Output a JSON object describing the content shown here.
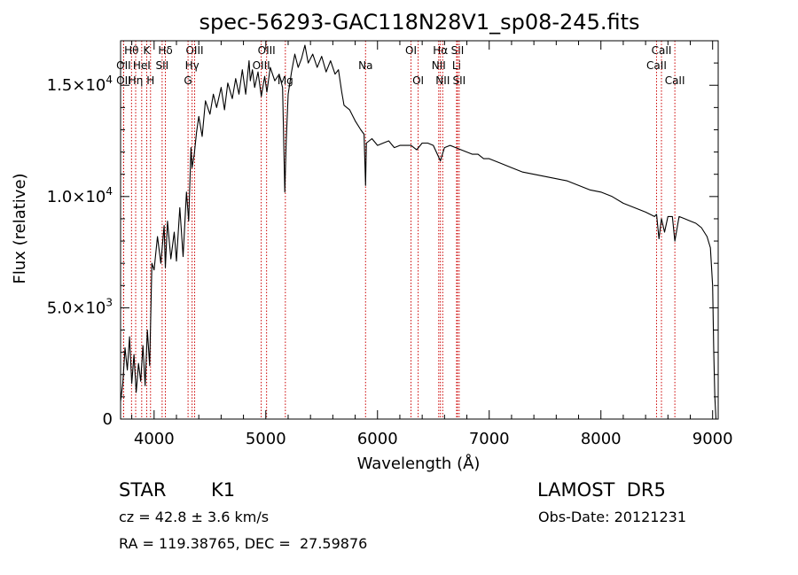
{
  "chart_data": {
    "type": "line",
    "title": "spec-56293-GAC118N28V1_sp08-245.fits",
    "xlabel": "Wavelength (Å)",
    "ylabel": "Flux (relative)",
    "xlim": [
      3700,
      9050
    ],
    "ylim": [
      0,
      17000
    ],
    "x_ticks": [
      4000,
      5000,
      6000,
      7000,
      8000,
      9000
    ],
    "x_tick_labels": [
      "4000",
      "5000",
      "6000",
      "7000",
      "8000",
      "9000"
    ],
    "y_ticks": [
      0,
      5000,
      10000,
      15000
    ],
    "y_tick_labels": [
      {
        "mantissa": "0",
        "exponent": ""
      },
      {
        "mantissa": "5.0×10",
        "exponent": "3"
      },
      {
        "mantissa": "1.0×10",
        "exponent": "4"
      },
      {
        "mantissa": "1.5×10",
        "exponent": "4"
      }
    ],
    "series": [
      {
        "color": "#000000",
        "x": [
          3700,
          3720,
          3740,
          3760,
          3780,
          3800,
          3820,
          3840,
          3860,
          3880,
          3900,
          3920,
          3940,
          3960,
          3980,
          4000,
          4030,
          4060,
          4090,
          4101,
          4120,
          4150,
          4180,
          4200,
          4230,
          4260,
          4290,
          4310,
          4330,
          4340,
          4360,
          4380,
          4400,
          4430,
          4460,
          4500,
          4530,
          4560,
          4600,
          4630,
          4660,
          4700,
          4730,
          4760,
          4790,
          4820,
          4850,
          4861,
          4880,
          4900,
          4930,
          4960,
          4990,
          5010,
          5040,
          5080,
          5120,
          5150,
          5170,
          5183,
          5200,
          5230,
          5260,
          5290,
          5320,
          5350,
          5380,
          5420,
          5460,
          5500,
          5540,
          5580,
          5620,
          5650,
          5680,
          5700,
          5750,
          5800,
          5850,
          5880,
          5893,
          5900,
          5950,
          6000,
          6050,
          6100,
          6150,
          6200,
          6250,
          6300,
          6350,
          6400,
          6450,
          6500,
          6563,
          6600,
          6650,
          6700,
          6750,
          6800,
          6850,
          6900,
          6950,
          7000,
          7100,
          7200,
          7300,
          7400,
          7500,
          7600,
          7700,
          7800,
          7900,
          8000,
          8100,
          8200,
          8300,
          8400,
          8480,
          8498,
          8520,
          8542,
          8570,
          8600,
          8640,
          8662,
          8700,
          8750,
          8800,
          8850,
          8900,
          8950,
          8980,
          9000,
          9010,
          9020,
          9030
        ],
        "y": [
          800,
          1600,
          3200,
          2200,
          3700,
          1600,
          2900,
          1200,
          2500,
          1700,
          3300,
          1500,
          4000,
          2400,
          7000,
          6700,
          8200,
          7000,
          8700,
          6800,
          8900,
          7200,
          8400,
          7100,
          9500,
          7300,
          10200,
          8900,
          12200,
          11300,
          11900,
          12900,
          13600,
          12700,
          14300,
          13700,
          14600,
          14000,
          14900,
          13900,
          15100,
          14400,
          15300,
          14600,
          15700,
          14600,
          16100,
          15200,
          15700,
          14900,
          15600,
          14500,
          15400,
          14700,
          15800,
          15200,
          15500,
          14900,
          10200,
          12500,
          14600,
          15600,
          16400,
          15800,
          16200,
          16800,
          16000,
          16400,
          15800,
          16300,
          15600,
          16100,
          15500,
          15700,
          14700,
          14100,
          13900,
          13400,
          13000,
          12800,
          10500,
          12400,
          12600,
          12300,
          12400,
          12500,
          12200,
          12300,
          12300,
          12300,
          12100,
          12400,
          12400,
          12300,
          11600,
          12200,
          12300,
          12200,
          12100,
          12000,
          11900,
          11900,
          11700,
          11700,
          11500,
          11300,
          11100,
          11000,
          10900,
          10800,
          10700,
          10500,
          10300,
          10200,
          10000,
          9700,
          9500,
          9300,
          9100,
          9200,
          8100,
          9000,
          8400,
          9100,
          9100,
          8000,
          9100,
          9000,
          8900,
          8800,
          8600,
          8200,
          7700,
          6000,
          3000,
          1000,
          0
        ]
      }
    ],
    "line_markers": [
      {
        "label": "Hθ",
        "x": 3798,
        "row": 1
      },
      {
        "label": "OII",
        "x": 3727,
        "row": 2
      },
      {
        "label": "OII",
        "x": 3727,
        "row": 3
      },
      {
        "label": "K",
        "x": 3934,
        "row": 1
      },
      {
        "label": "HeI",
        "x": 3889,
        "row": 2
      },
      {
        "label": "Hη",
        "x": 3835,
        "row": 3
      },
      {
        "label": "H",
        "x": 3968,
        "row": 3
      },
      {
        "label": "Hδ",
        "x": 4101,
        "row": 1
      },
      {
        "label": "SII",
        "x": 4072,
        "row": 2
      },
      {
        "label": "OIII",
        "x": 4363,
        "row": 1
      },
      {
        "label": "Hγ",
        "x": 4340,
        "row": 2
      },
      {
        "label": "G",
        "x": 4304,
        "row": 3
      },
      {
        "label": "OIII",
        "x": 5007,
        "row": 1
      },
      {
        "label": "OIII",
        "x": 4959,
        "row": 2
      },
      {
        "label": "Mg",
        "x": 5175,
        "row": 3
      },
      {
        "label": "Na",
        "x": 5893,
        "row": 2
      },
      {
        "label": "OI",
        "x": 6300,
        "row": 1
      },
      {
        "label": "OI",
        "x": 6364,
        "row": 3
      },
      {
        "label": "Hα",
        "x": 6563,
        "row": 1
      },
      {
        "label": "SII",
        "x": 6716,
        "row": 1
      },
      {
        "label": "NII",
        "x": 6548,
        "row": 2
      },
      {
        "label": "Li",
        "x": 6708,
        "row": 2
      },
      {
        "label": "NII",
        "x": 6584,
        "row": 3
      },
      {
        "label": "SII",
        "x": 6731,
        "row": 3
      },
      {
        "label": "CaII",
        "x": 8542,
        "row": 1
      },
      {
        "label": "CaII",
        "x": 8498,
        "row": 2
      },
      {
        "label": "CaII",
        "x": 8662,
        "row": 3
      }
    ],
    "marker_color": "#cc0000",
    "grid": false
  },
  "info": {
    "object_type": "STAR",
    "subclass": "K1",
    "survey": "LAMOST  DR5",
    "redshift": "cz = 42.8 ± 3.6 km/s",
    "obs_date": "Obs-Date: 20121231",
    "coords": "RA = 119.38765, DEC =  27.59876"
  }
}
